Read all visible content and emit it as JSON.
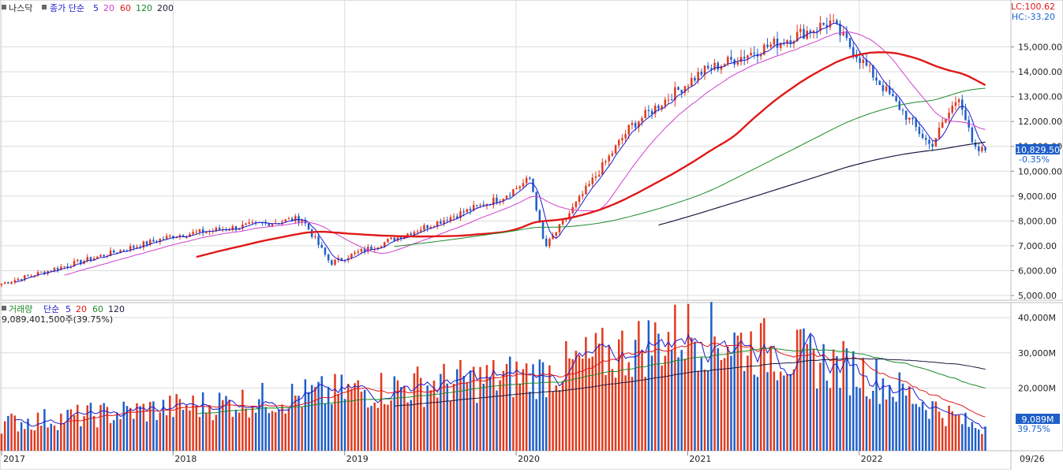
{
  "price_panel": {
    "legend_name": "나스닥",
    "legend_ma_prefix": "종가 단순",
    "ma_periods": [
      "5",
      "20",
      "60",
      "120",
      "200"
    ],
    "lc_text": "LC:100.62",
    "hc_text": "HC:-33.20",
    "last_price_label": "10,829.50",
    "last_change_label": "-0.35%"
  },
  "volume_panel": {
    "legend_name": "거래량",
    "legend_ma_prefix": "단순",
    "ma_periods": [
      "5",
      "20",
      "60",
      "120"
    ],
    "last_volume_text": "9,089,401,500주(39.75%)",
    "last_volume_label": "9,089M",
    "last_volume_pct": "39.75%"
  },
  "colors": {
    "up": "#e03a1e",
    "down": "#1f5fc8",
    "ma5": "#1a1ad0",
    "ma20": "#d040d0",
    "ma60": "#e01818",
    "ma120": "#1a8a2a",
    "ma200": "#1a1a40",
    "grid": "#dcdcdc"
  },
  "chart_data": [
    {
      "type": "candlestick",
      "title": "나스닥",
      "series_sampled": "weekly close (approx.)",
      "moving_averages": [
        "5",
        "20",
        "60",
        "120",
        "200"
      ],
      "ylim": [
        5000,
        16000
      ],
      "y_ticks": [
        "5,000.00",
        "6,000.00",
        "7,000.00",
        "8,000.00",
        "9,000.00",
        "10,000.00",
        "11,000.00",
        "12,000.00",
        "13,000.00",
        "14,000.00",
        "15,000.00"
      ],
      "x_ticks": [
        "2017",
        "2018",
        "2019",
        "2020",
        "2021",
        "2022",
        "09/26"
      ],
      "key_points": [
        {
          "x": "2017-01",
          "close": 5480
        },
        {
          "x": "2018-01",
          "close": 7400
        },
        {
          "x": "2018-10",
          "close": 8100
        },
        {
          "x": "2018-12",
          "close": 6300
        },
        {
          "x": "2019-12",
          "close": 8950
        },
        {
          "x": "2020-02",
          "close": 9700
        },
        {
          "x": "2020-03",
          "close": 6900
        },
        {
          "x": "2020-09",
          "close": 11800
        },
        {
          "x": "2021-02",
          "close": 14000
        },
        {
          "x": "2021-11",
          "close": 16000
        },
        {
          "x": "2022-06",
          "close": 11000
        },
        {
          "x": "2022-08",
          "close": 13100
        },
        {
          "x": "2022-09",
          "close": 10829.5
        }
      ],
      "last_close": 10829.5,
      "last_change_pct": -0.35
    },
    {
      "type": "bar",
      "title": "거래량",
      "unit": "M",
      "moving_averages": [
        "5",
        "20",
        "60",
        "120"
      ],
      "ylim": [
        0,
        40000
      ],
      "y_ticks": [
        "40,000M",
        "30,000M",
        "20,000M"
      ],
      "key_points": [
        {
          "x": "2017",
          "volume": 10000
        },
        {
          "x": "2020-03",
          "volume": 24000
        },
        {
          "x": "2021-01",
          "volume": 36000
        },
        {
          "x": "2022",
          "volume": 25000
        },
        {
          "x": "2022-09",
          "volume": 9089
        }
      ],
      "last_volume_m": 9089,
      "last_volume_pct": 39.75
    }
  ]
}
